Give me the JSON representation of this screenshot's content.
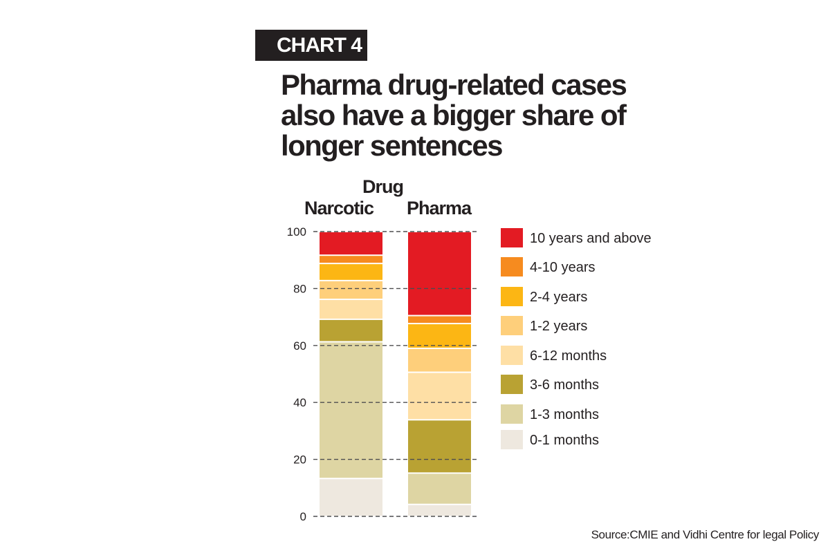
{
  "header": {
    "chart_label": "CHART 4",
    "title_lines": [
      "Pharma drug-related cases",
      "also have a bigger share of",
      "longer sentences"
    ]
  },
  "source": "Source:CMIE and Vidhi Centre for legal Policy",
  "chart_data": {
    "type": "bar",
    "stacked": true,
    "title": "Pharma drug-related cases also have a bigger share of longer sentences",
    "header_group": "Drug",
    "categories": [
      "Narcotic",
      "Pharma"
    ],
    "ylim": [
      0,
      100
    ],
    "yticks": [
      0,
      20,
      40,
      60,
      80,
      100
    ],
    "grid": "dashed horizontal",
    "legend_position": "right",
    "xlabel": "",
    "ylabel": "",
    "series": [
      {
        "name": "0-1 months",
        "color": "#eee8df",
        "values": [
          13.3,
          4.2
        ]
      },
      {
        "name": "1-3 months",
        "color": "#ded5a3",
        "values": [
          48.0,
          11.0
        ]
      },
      {
        "name": "3-6 months",
        "color": "#b9a233",
        "values": [
          7.9,
          18.7
        ]
      },
      {
        "name": "6-12 months",
        "color": "#fedfa5",
        "values": [
          7.0,
          16.7
        ]
      },
      {
        "name": "1-2 years",
        "color": "#fecf7b",
        "values": [
          6.6,
          8.4
        ]
      },
      {
        "name": "2-4 years",
        "color": "#fcb614",
        "values": [
          6.0,
          8.7
        ]
      },
      {
        "name": "4-10 years",
        "color": "#f68b1f",
        "values": [
          2.9,
          2.8
        ]
      },
      {
        "name": "10 years and above",
        "color": "#e31b23",
        "values": [
          8.3,
          29.5
        ]
      }
    ]
  }
}
